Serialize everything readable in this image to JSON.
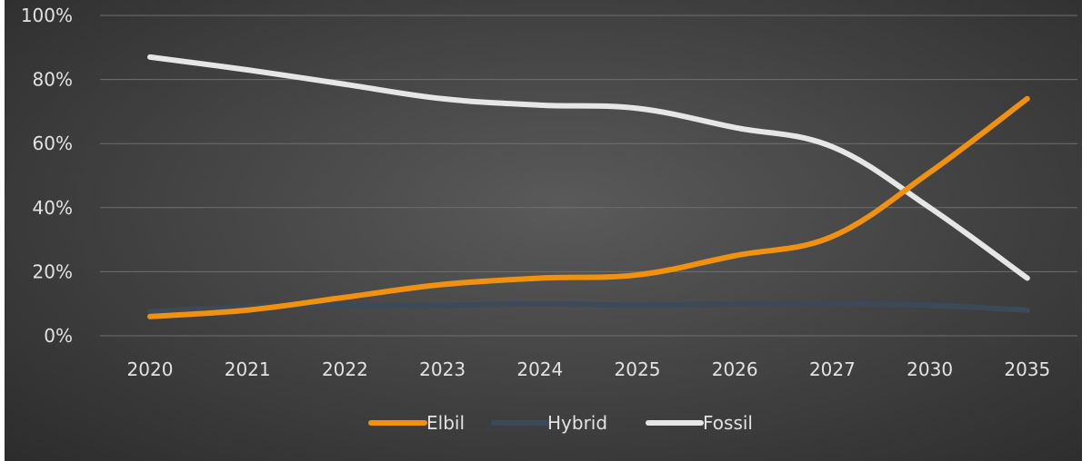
{
  "chart_data": {
    "type": "line",
    "title": "",
    "xlabel": "",
    "ylabel": "",
    "categories": [
      "2020",
      "2021",
      "2022",
      "2023",
      "2024",
      "2025",
      "2026",
      "2027",
      "2030",
      "2035"
    ],
    "ylim": [
      0,
      100
    ],
    "y_ticks": [
      "0%",
      "20%",
      "40%",
      "60%",
      "80%",
      "100%"
    ],
    "y_tick_values": [
      0,
      20,
      40,
      60,
      80,
      100
    ],
    "grid": true,
    "smooth": true,
    "legend_position": "bottom",
    "series": [
      {
        "name": "Elbil",
        "color": "#f0920f",
        "values": [
          6,
          8,
          12,
          16,
          18,
          19,
          25,
          31,
          51,
          74
        ]
      },
      {
        "name": "Hybrid",
        "color": "#3c4a57",
        "values": [
          7.5,
          9,
          9.5,
          9.5,
          10,
          9.5,
          10,
          10,
          9.5,
          8
        ]
      },
      {
        "name": "Fossil",
        "color": "#e6e6e6",
        "values": [
          87,
          83,
          78.5,
          74,
          72,
          71,
          65,
          59,
          40,
          18
        ]
      }
    ]
  }
}
